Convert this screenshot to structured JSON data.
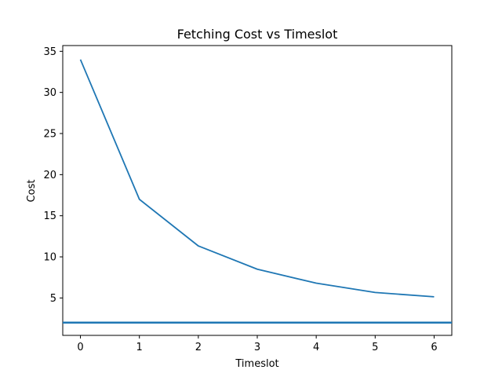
{
  "chart_data": {
    "type": "line",
    "title": "Fetching Cost vs Timeslot",
    "xlabel": "Timeslot",
    "ylabel": "Cost",
    "xlim": [
      -0.3,
      6.3
    ],
    "ylim": [
      0.45,
      35.7
    ],
    "xticks": [
      0,
      1,
      2,
      3,
      4,
      5,
      6
    ],
    "yticks": [
      5,
      10,
      15,
      20,
      25,
      30,
      35
    ],
    "grid": false,
    "series": [
      {
        "x": [
          0,
          1,
          2,
          3,
          4,
          5,
          6
        ],
        "values": [
          34.0,
          17.0,
          11.33,
          8.5,
          6.8,
          5.67,
          5.14
        ],
        "color": "#1f77b4"
      }
    ],
    "hlines": [
      {
        "y": 2.0,
        "color": "#1f77b4"
      }
    ]
  }
}
